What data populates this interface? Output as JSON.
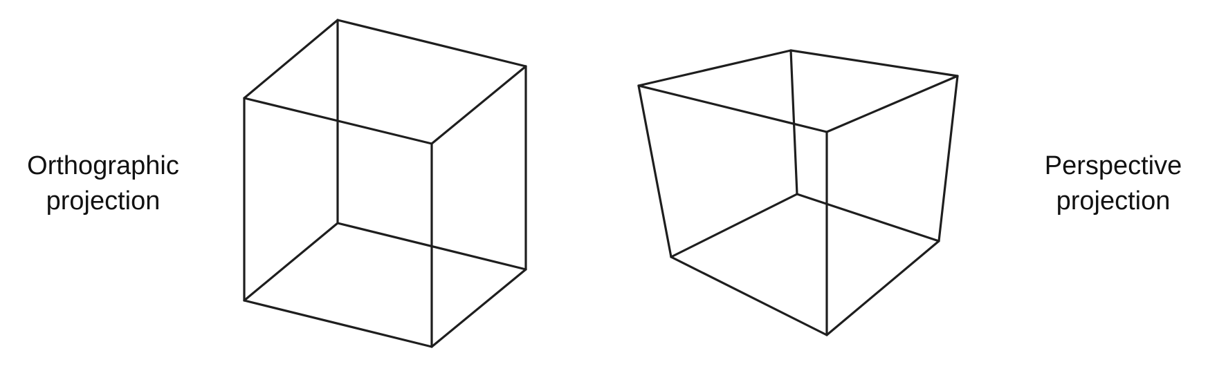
{
  "figure": {
    "orthographic_label": [
      "Orthographic",
      "projection"
    ],
    "perspective_label": [
      "Perspective",
      "projection"
    ],
    "edge_color": "#1e1e1e",
    "text_color": "#111111",
    "background": "#ffffff"
  }
}
